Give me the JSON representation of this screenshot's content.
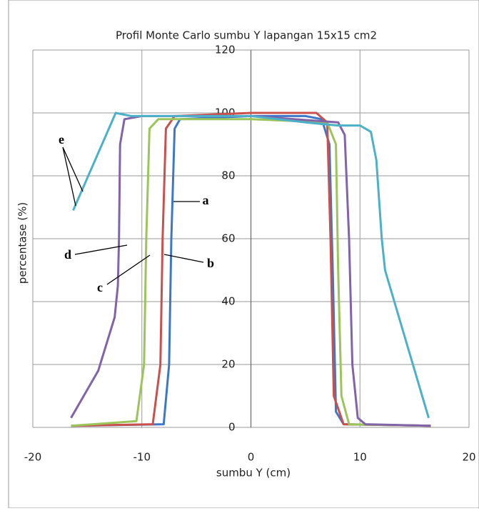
{
  "chart_data": {
    "type": "line",
    "title": "Profil Monte Carlo  sumbu  Y  lapangan 15x15  cm2",
    "xlabel": "sumbu Y (cm)",
    "ylabel": "percentase (%)",
    "xlim": [
      -20,
      20
    ],
    "xticks": [
      -20,
      -10,
      0,
      10,
      20
    ],
    "ylim": [
      0,
      120
    ],
    "yticks": [
      0,
      20,
      40,
      60,
      80,
      100,
      120
    ],
    "grid": true,
    "series": [
      {
        "name": "a",
        "color": "#3d78c8",
        "x": [
          -16.5,
          -8,
          -7.5,
          -7.3,
          -7,
          -6.5,
          0,
          5,
          6.5,
          7.2,
          7.5,
          7.8,
          8.5,
          16.5
        ],
        "values": [
          0.5,
          1,
          20,
          60,
          95,
          98,
          99,
          99,
          98,
          90,
          50,
          5,
          1,
          0.5
        ]
      },
      {
        "name": "b",
        "color": "#c9504d",
        "x": [
          -16.5,
          -9,
          -8.3,
          -8.1,
          -7.8,
          -7,
          0,
          6,
          7,
          7.3,
          7.6,
          8.5,
          16.5
        ],
        "values": [
          0.5,
          1,
          20,
          60,
          95,
          99,
          100,
          100,
          97,
          60,
          10,
          1,
          0.5
        ]
      },
      {
        "name": "c",
        "color": "#9bc45a",
        "x": [
          -16.5,
          -10.5,
          -9.8,
          -9.6,
          -9.3,
          -8.5,
          0,
          7,
          7.8,
          8,
          8.3,
          9,
          16.5
        ],
        "values": [
          0.5,
          2,
          20,
          60,
          95,
          98,
          98,
          97,
          90,
          50,
          10,
          1,
          0.5
        ]
      },
      {
        "name": "d",
        "color": "#8262a8",
        "x": [
          -16.5,
          -14,
          -12.5,
          -12.2,
          -12.1,
          -12,
          -11.6,
          -10,
          0,
          8,
          8.6,
          9,
          9.3,
          9.8,
          10.5,
          16.5
        ],
        "values": [
          3,
          18,
          35,
          45,
          60,
          90,
          98,
          99,
          99,
          97,
          93,
          60,
          20,
          3,
          1,
          0.5
        ]
      },
      {
        "name": "e",
        "color": "#4bb0c8",
        "x": [
          -16.3,
          -12.4,
          -11,
          0,
          5,
          8,
          10,
          11,
          11.5,
          12,
          12.3,
          14,
          16.3
        ],
        "values": [
          69,
          100,
          99,
          99,
          97,
          96,
          96,
          94,
          85,
          60,
          50,
          30,
          3
        ]
      }
    ]
  }
}
